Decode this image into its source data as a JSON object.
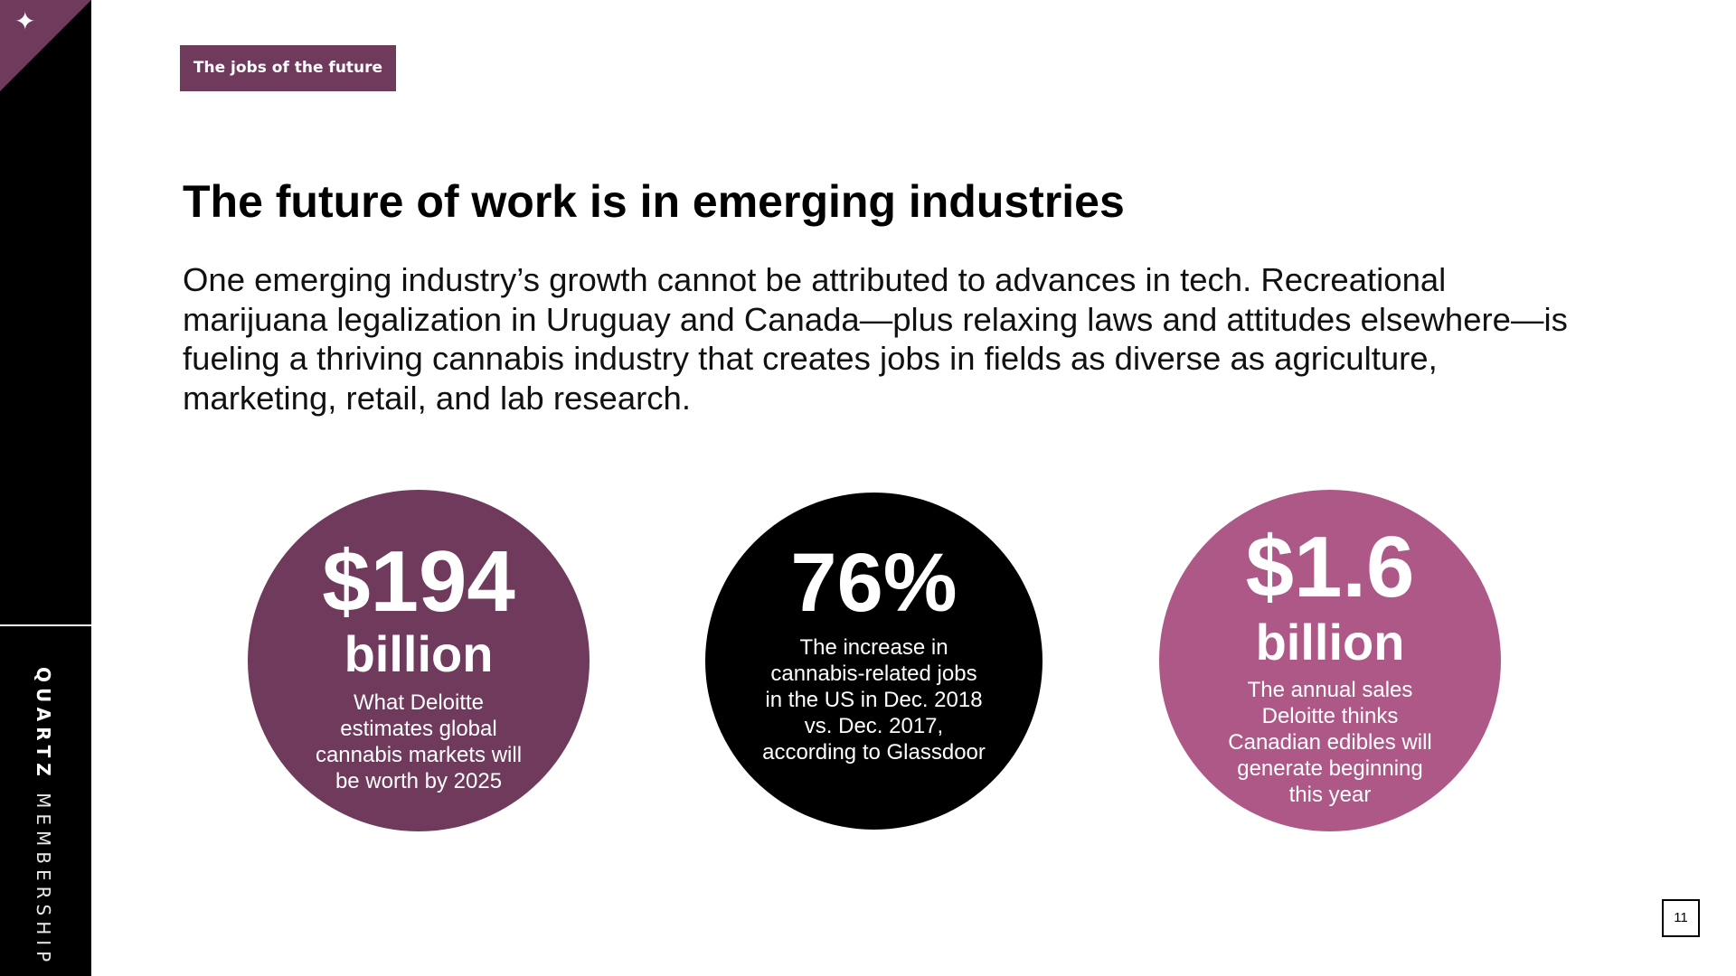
{
  "brand": {
    "name_bold": "QUARTZ",
    "name_light": "MEMBERSHIP"
  },
  "tag": {
    "label": "The jobs of the future"
  },
  "title": "The future of work is in emerging industries",
  "body": "One emerging industry’s growth cannot be attributed to advances in tech. Recreational marijuana legalization in Uruguay and Canada—plus relaxing laws and attitudes elsewhere—is fueling a thriving cannabis industry that creates jobs in fields as diverse as agriculture, marketing, retail, and lab research.",
  "stats": [
    {
      "value": "$194",
      "unit": "billion",
      "description": "What Deloitte estimates global cannabis markets will be worth by 2025",
      "color": "#6f3a5c"
    },
    {
      "value": "76%",
      "unit": "",
      "description": "The increase in cannabis-related jobs in the US in Dec. 2018 vs. Dec. 2017, according to Glassdoor",
      "color": "#000000"
    },
    {
      "value": "$1.6",
      "unit": "billion",
      "description": "The annual sales Deloitte thinks Canadian edibles will generate beginning this year",
      "color": "#ad5886"
    }
  ],
  "page_number": "11",
  "icons": {
    "corner": "sparkle-icon"
  },
  "colors": {
    "accent": "#6f3a5c",
    "accent_light": "#ad5886",
    "sidebar": "#000000"
  }
}
